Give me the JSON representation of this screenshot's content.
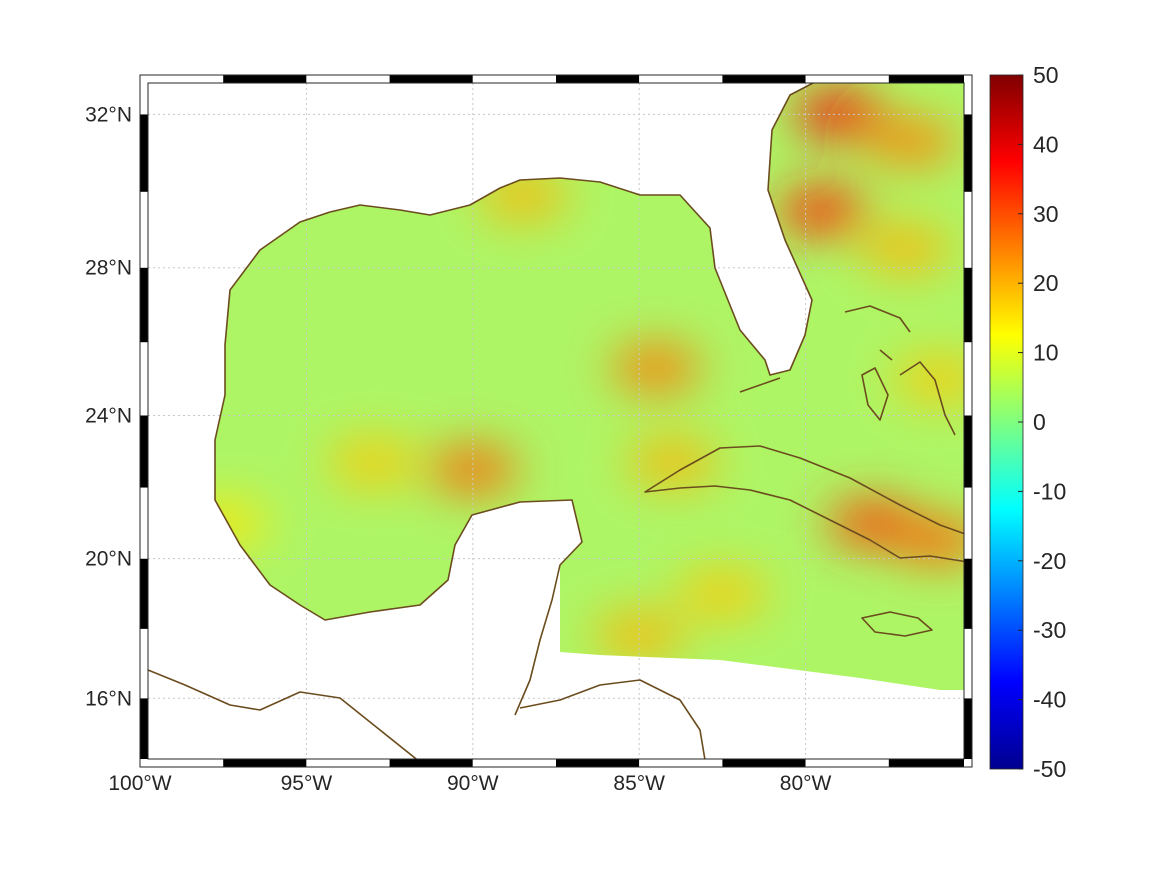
{
  "chart_data": {
    "type": "heatmap",
    "projection": "mercator",
    "region": "Gulf of Mexico and western Caribbean",
    "lon_range": [
      -100,
      -75
    ],
    "lat_range": [
      14,
      33
    ],
    "x_ticks": [
      {
        "value": -100,
        "label": "100°W"
      },
      {
        "value": -95,
        "label": "95°W"
      },
      {
        "value": -90,
        "label": "90°W"
      },
      {
        "value": -85,
        "label": "85°W"
      },
      {
        "value": -80,
        "label": "80°W"
      }
    ],
    "y_ticks": [
      {
        "value": 16,
        "label": "16°N"
      },
      {
        "value": 20,
        "label": "20°N"
      },
      {
        "value": 24,
        "label": "24°N"
      },
      {
        "value": 28,
        "label": "28°N"
      },
      {
        "value": 32,
        "label": "32°N"
      }
    ],
    "colorbar": {
      "colormap": "jet",
      "range": [
        -50,
        50
      ],
      "ticks": [
        "50",
        "40",
        "30",
        "20",
        "10",
        "0",
        "-10",
        "-20",
        "-30",
        "-40",
        "-50"
      ]
    },
    "grid": true,
    "coastline_color": "#6b4c1e",
    "hotspots": [
      {
        "lon": -90.0,
        "lat": 22.5,
        "value": 28
      },
      {
        "lon": -79.5,
        "lat": 29.5,
        "value": 35
      },
      {
        "lon": -79.0,
        "lat": 32.0,
        "value": 38
      },
      {
        "lon": -76.8,
        "lat": 31.3,
        "value": 25
      },
      {
        "lon": -77.0,
        "lat": 28.5,
        "value": 20
      },
      {
        "lon": -78.0,
        "lat": 21.0,
        "value": 32
      },
      {
        "lon": -76.0,
        "lat": 20.5,
        "value": 28
      },
      {
        "lon": -84.5,
        "lat": 25.3,
        "value": 26
      },
      {
        "lon": -93.0,
        "lat": 22.7,
        "value": 18
      },
      {
        "lon": -85.0,
        "lat": 17.8,
        "value": 20
      },
      {
        "lon": -82.5,
        "lat": 19.0,
        "value": 18
      },
      {
        "lon": -88.5,
        "lat": 29.9,
        "value": 20
      },
      {
        "lon": -84.0,
        "lat": 22.7,
        "value": 20
      },
      {
        "lon": -76.0,
        "lat": 25.0,
        "value": 18
      },
      {
        "lon": -97.5,
        "lat": 21.0,
        "value": 15
      }
    ]
  }
}
